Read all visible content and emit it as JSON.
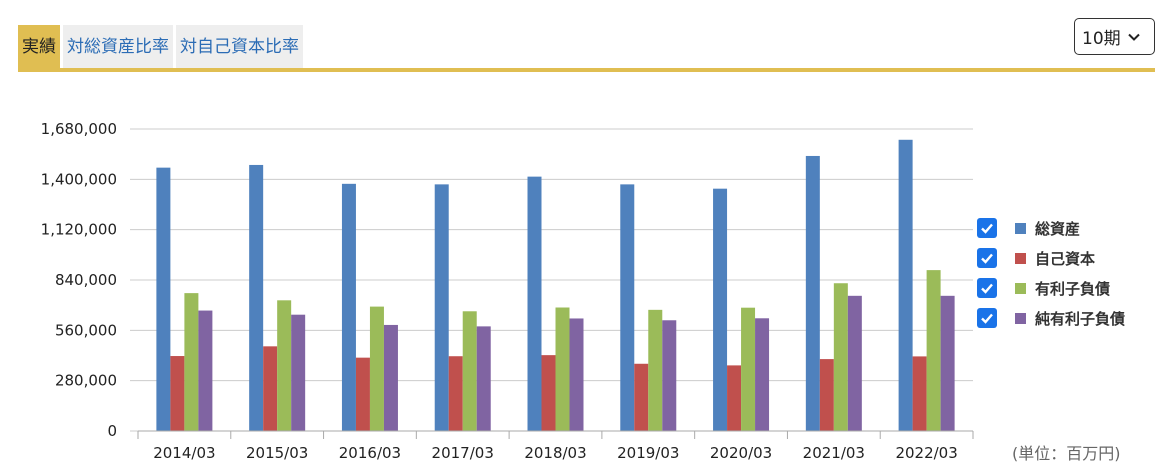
{
  "tabs": [
    {
      "label": "実績",
      "active": true
    },
    {
      "label": "対総資産比率",
      "active": false
    },
    {
      "label": "対自己資本比率",
      "active": false
    }
  ],
  "period_select": {
    "value": "10期"
  },
  "unit_label": "(単位：百万円)",
  "colors": {
    "accent": "#e0be52",
    "tab_text": "#2b6cb5",
    "checkbox": "#1a73e8"
  },
  "chart_data": {
    "type": "bar",
    "categories": [
      "2014/03",
      "2015/03",
      "2016/03",
      "2017/03",
      "2018/03",
      "2019/03",
      "2020/03",
      "2021/03",
      "2022/03"
    ],
    "ylim": [
      0,
      1680000
    ],
    "yticks": [
      {
        "value": 0,
        "label": "0"
      },
      {
        "value": 280000,
        "label": "280,000"
      },
      {
        "value": 560000,
        "label": "560,000"
      },
      {
        "value": 840000,
        "label": "840,000"
      },
      {
        "value": 1120000,
        "label": "1,120,000"
      },
      {
        "value": 1400000,
        "label": "1,400,000"
      },
      {
        "value": 1680000,
        "label": "1,680,000"
      }
    ],
    "grid": true,
    "legend_position": "right",
    "series": [
      {
        "name": "総資産",
        "color": "#4f81bd",
        "checked": true,
        "values": [
          1465000,
          1480000,
          1375000,
          1372000,
          1415000,
          1372000,
          1348000,
          1530000,
          1620000
        ]
      },
      {
        "name": "自己資本",
        "color": "#c0504d",
        "checked": true,
        "values": [
          417000,
          471000,
          408000,
          416000,
          422000,
          374000,
          365000,
          400000,
          415000
        ]
      },
      {
        "name": "有利子負債",
        "color": "#9bbb59",
        "checked": true,
        "values": [
          767000,
          727000,
          692000,
          666000,
          687000,
          674000,
          686000,
          822000,
          895000
        ]
      },
      {
        "name": "純有利子負債",
        "color": "#8064a2",
        "checked": true,
        "values": [
          670000,
          647000,
          590000,
          582000,
          626000,
          616000,
          627000,
          752000,
          752000
        ]
      }
    ]
  }
}
